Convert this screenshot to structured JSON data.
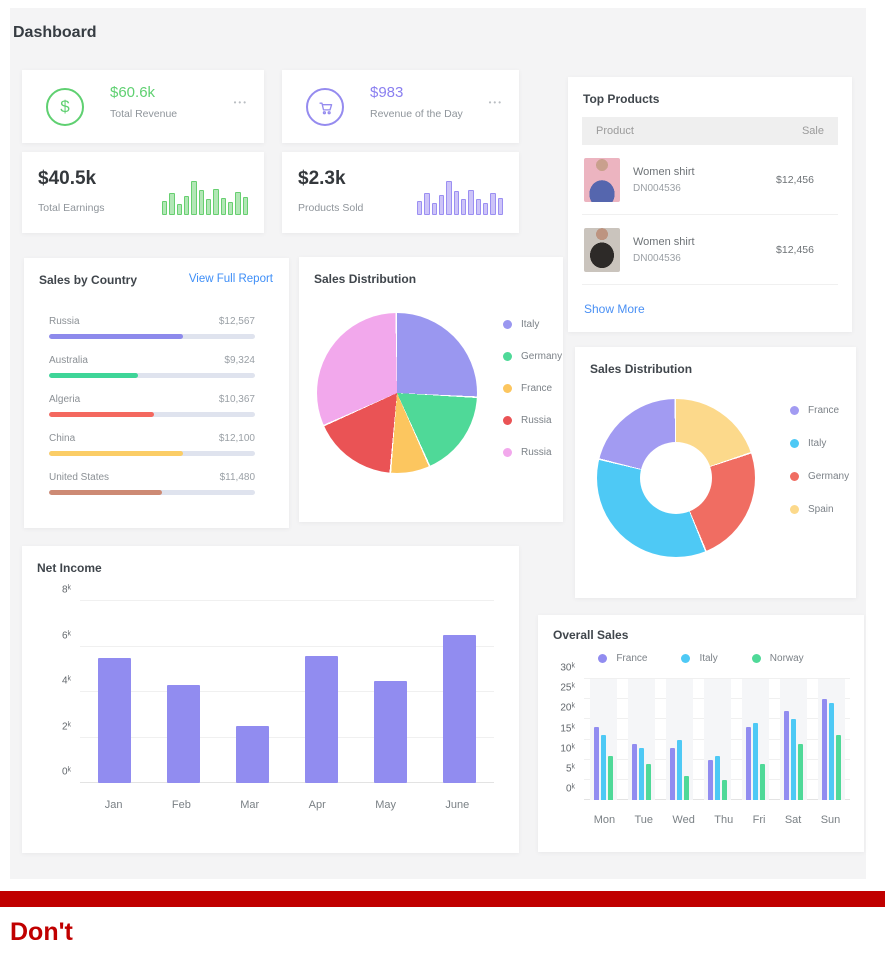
{
  "page": {
    "title": "Dashboard",
    "dont": "Don't",
    "banner_color": "#c00000"
  },
  "stat_cards": {
    "revenue": {
      "value": "$60.6k",
      "label": "Total Revenue",
      "menu": "•••",
      "accent": "#5fd071"
    },
    "day": {
      "value": "$983",
      "label": "Revenue of the Day",
      "menu": "•••",
      "accent": "#8a7ff0"
    },
    "earnings": {
      "value": "$40.5k",
      "label": "Total Earnings"
    },
    "sold": {
      "value": "$2.3k",
      "label": "Products Sold"
    }
  },
  "top_products": {
    "title": "Top Products",
    "columns": [
      "Product",
      "Sale"
    ],
    "rows": [
      {
        "name": "Women shirt",
        "sku": "DN004536",
        "sale": "$12,456",
        "thumb": "pink"
      },
      {
        "name": "Women shirt",
        "sku": "DN004536",
        "sale": "$12,456",
        "thumb": "gray"
      }
    ],
    "show_more": "Show More"
  },
  "sales_by_country_card": {
    "title": "Sales by Country",
    "link": "View Full Report"
  },
  "chart_data": [
    {
      "id": "earnings_spark",
      "type": "bar",
      "values": [
        40,
        62,
        30,
        52,
        95,
        70,
        45,
        72,
        48,
        36,
        64,
        50
      ],
      "color": "#67cf70",
      "fill": "#b2e7b6"
    },
    {
      "id": "sold_spark",
      "type": "bar",
      "values": [
        38,
        60,
        32,
        55,
        95,
        68,
        45,
        70,
        45,
        34,
        62,
        48
      ],
      "color": "#9b8ff2",
      "fill": "#cdc4f8"
    },
    {
      "id": "sales_by_country",
      "type": "bar",
      "orientation": "horizontal",
      "categories": [
        "Russia",
        "Australia",
        "Algeria",
        "China",
        "United States"
      ],
      "values": [
        12567,
        9324,
        10367,
        12100,
        11480
      ],
      "value_labels": [
        "$12,567",
        "$9,324",
        "$10,367",
        "$12,100",
        "$11,480"
      ],
      "pct": [
        65,
        43,
        51,
        65,
        55
      ],
      "colors": [
        "#8d8aec",
        "#3ed598",
        "#f4685f",
        "#fbcd66",
        "#cd8a74"
      ]
    },
    {
      "id": "pie",
      "type": "pie",
      "title": "Sales Distribution",
      "labels": [
        "Italy",
        "Germany",
        "France",
        "Russia",
        "Russia"
      ],
      "values": [
        26,
        17.5,
        8,
        17,
        31.5
      ],
      "colors": [
        "#9a97f0",
        "#4fd998",
        "#fcc65f",
        "#ea5355",
        "#f2a8ec"
      ],
      "legend_position": "right"
    },
    {
      "id": "donut",
      "type": "pie",
      "subtype": "donut",
      "title": "Sales Distribution",
      "labels": [
        "France",
        "Italy",
        "Germany",
        "Spain"
      ],
      "values": [
        21,
        35,
        24,
        20
      ],
      "colors": [
        "#a29bf2",
        "#4ec9f5",
        "#f06d62",
        "#fcd98b"
      ],
      "counterclockwise": true,
      "legend_position": "right"
    },
    {
      "id": "net_income",
      "type": "bar",
      "title": "Net Income",
      "categories": [
        "Jan",
        "Feb",
        "Mar",
        "Apr",
        "May",
        "June"
      ],
      "values": [
        5.5,
        4.3,
        2.5,
        5.6,
        4.5,
        6.5
      ],
      "color": "#918cf0",
      "ylim": [
        0,
        8
      ],
      "yticks": [
        0,
        2,
        4,
        6,
        8
      ],
      "unit": "k",
      "grid": true
    },
    {
      "id": "overall_sales",
      "type": "bar",
      "title": "Overall Sales",
      "categories": [
        "Mon",
        "Tue",
        "Wed",
        "Thu",
        "Fri",
        "Sat",
        "Sun"
      ],
      "series": [
        {
          "name": "France",
          "color": "#918cf0",
          "values": [
            18,
            14,
            13,
            10,
            18,
            22,
            25
          ]
        },
        {
          "name": "Italy",
          "color": "#4ec9f5",
          "values": [
            16,
            13,
            15,
            11,
            19,
            20,
            24
          ]
        },
        {
          "name": "Norway",
          "color": "#4fd998",
          "values": [
            11,
            9,
            6,
            5,
            9,
            14,
            16
          ]
        }
      ],
      "ylim": [
        0,
        30
      ],
      "yticks": [
        0,
        5,
        10,
        15,
        20,
        25,
        30
      ],
      "unit": "k",
      "legend_position": "top",
      "grid": true
    }
  ]
}
